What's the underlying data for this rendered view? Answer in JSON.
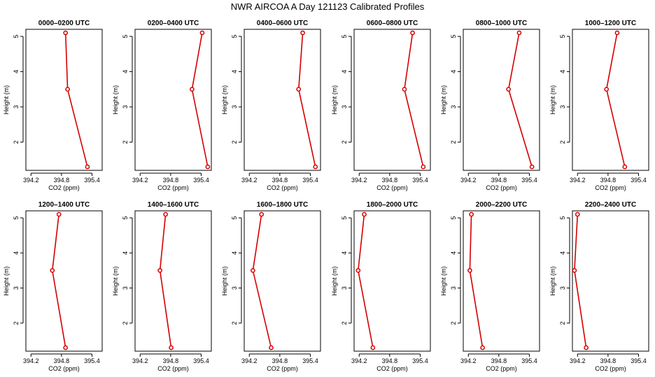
{
  "figure": {
    "title": "NWR AIRCOA A  Day 121123  Calibrated Profiles"
  },
  "chart_data": {
    "type": "line",
    "xlabel": "CO2 (ppm)",
    "ylabel": "Height (m)",
    "xlim": [
      394.1,
      395.6
    ],
    "ylim": [
      1.2,
      5.2
    ],
    "xticks": [
      394.2,
      394.8,
      395.4
    ],
    "xtick_labels": [
      "394.2",
      "394.8",
      "395.4"
    ],
    "yticks": [
      2,
      3,
      4,
      5
    ],
    "ytick_labels": [
      "2",
      "3",
      "4",
      "5"
    ],
    "grid": false,
    "panels": [
      {
        "title": "0000–0200 UTC",
        "x": [
          395.31,
          394.92,
          394.88
        ],
        "y": [
          1.3,
          3.5,
          5.1
        ]
      },
      {
        "title": "0200–0400 UTC",
        "x": [
          395.53,
          395.22,
          395.42
        ],
        "y": [
          1.3,
          3.5,
          5.1
        ]
      },
      {
        "title": "0400–0600 UTC",
        "x": [
          395.5,
          395.17,
          395.25
        ],
        "y": [
          1.3,
          3.5,
          5.1
        ]
      },
      {
        "title": "0600–0800 UTC",
        "x": [
          395.46,
          395.09,
          395.25
        ],
        "y": [
          1.3,
          3.5,
          5.1
        ]
      },
      {
        "title": "0800–1000 UTC",
        "x": [
          395.45,
          394.99,
          395.2
        ],
        "y": [
          1.3,
          3.5,
          5.1
        ]
      },
      {
        "title": "1000–1200 UTC",
        "x": [
          395.13,
          394.77,
          394.98
        ],
        "y": [
          1.3,
          3.5,
          5.1
        ]
      },
      {
        "title": "1200–1400 UTC",
        "x": [
          394.88,
          394.62,
          394.75
        ],
        "y": [
          1.3,
          3.5,
          5.1
        ]
      },
      {
        "title": "1400–1600 UTC",
        "x": [
          394.81,
          394.59,
          394.7
        ],
        "y": [
          1.3,
          3.5,
          5.1
        ]
      },
      {
        "title": "1600–1800 UTC",
        "x": [
          394.63,
          394.27,
          394.44
        ],
        "y": [
          1.3,
          3.5,
          5.1
        ]
      },
      {
        "title": "1800–2000 UTC",
        "x": [
          394.47,
          394.18,
          394.3
        ],
        "y": [
          1.3,
          3.5,
          5.1
        ]
      },
      {
        "title": "2000–2200 UTC",
        "x": [
          394.48,
          394.23,
          394.26
        ],
        "y": [
          1.3,
          3.5,
          5.1
        ]
      },
      {
        "title": "2200–2400 UTC",
        "x": [
          394.37,
          394.14,
          394.2
        ],
        "y": [
          1.3,
          3.5,
          5.1
        ]
      }
    ]
  }
}
